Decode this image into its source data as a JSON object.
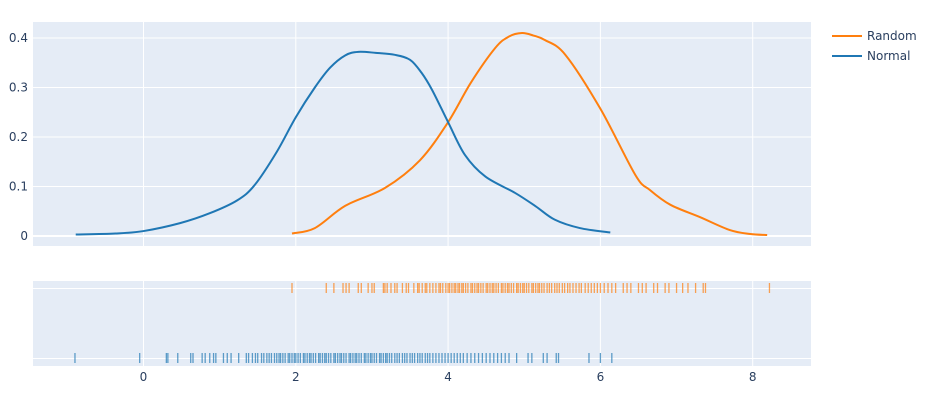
{
  "chart_data": {
    "type": "line",
    "subtype": "distplot (kde curves + rug)",
    "title": "",
    "xlabel": "",
    "ylabel": "",
    "xlim": [
      -1.45,
      8.75
    ],
    "ylim": [
      -0.02,
      0.43
    ],
    "grid": true,
    "legend_position": "top-right, outside plot",
    "x_ticks": [
      0,
      2,
      4,
      6,
      8
    ],
    "x_tick_labels": [
      "0",
      "2",
      "4",
      "6",
      "8"
    ],
    "y_ticks": [
      0,
      0.1,
      0.2,
      0.3,
      0.4
    ],
    "y_tick_labels": [
      "0",
      "0.1",
      "0.2",
      "0.3",
      "0.4"
    ],
    "series": [
      {
        "name": "Random",
        "color": "#ff7f0e",
        "x": [
          1.95,
          2.25,
          2.65,
          3.17,
          3.63,
          4.0,
          4.3,
          4.62,
          4.8,
          4.97,
          5.12,
          5.27,
          5.54,
          6.0,
          6.46,
          6.65,
          6.92,
          7.31,
          7.7,
          7.97,
          8.19
        ],
        "y": [
          0.005,
          0.016,
          0.061,
          0.097,
          0.153,
          0.23,
          0.31,
          0.38,
          0.403,
          0.41,
          0.405,
          0.396,
          0.366,
          0.257,
          0.123,
          0.093,
          0.063,
          0.038,
          0.012,
          0.004,
          0.002
        ],
        "rug": [
          1.95,
          2.4,
          2.5,
          2.62,
          2.66,
          2.7,
          2.82,
          2.86,
          2.95,
          3.0,
          3.03,
          3.15,
          3.17,
          3.2,
          3.25,
          3.3,
          3.33,
          3.4,
          3.45,
          3.48,
          3.55,
          3.6,
          3.62,
          3.66,
          3.7,
          3.72,
          3.76,
          3.8,
          3.84,
          3.88,
          3.9,
          3.93,
          3.97,
          4.0,
          4.02,
          4.05,
          4.08,
          4.1,
          4.13,
          4.15,
          4.18,
          4.2,
          4.23,
          4.26,
          4.3,
          4.32,
          4.35,
          4.38,
          4.4,
          4.43,
          4.46,
          4.5,
          4.52,
          4.55,
          4.58,
          4.6,
          4.63,
          4.66,
          4.7,
          4.72,
          4.75,
          4.78,
          4.8,
          4.83,
          4.86,
          4.9,
          4.92,
          4.95,
          4.98,
          5.0,
          5.03,
          5.06,
          5.1,
          5.12,
          5.15,
          5.18,
          5.2,
          5.23,
          5.26,
          5.3,
          5.33,
          5.36,
          5.4,
          5.43,
          5.46,
          5.5,
          5.53,
          5.57,
          5.6,
          5.64,
          5.68,
          5.72,
          5.75,
          5.8,
          5.84,
          5.88,
          5.92,
          5.96,
          6.0,
          6.05,
          6.1,
          6.15,
          6.2,
          6.3,
          6.35,
          6.4,
          6.5,
          6.55,
          6.6,
          6.7,
          6.75,
          6.85,
          6.9,
          7.0,
          7.08,
          7.15,
          7.25,
          7.35,
          7.38,
          8.22
        ]
      },
      {
        "name": "Normal",
        "color": "#1f77b4",
        "x": [
          -0.89,
          -0.37,
          0.0,
          0.48,
          0.87,
          1.23,
          1.46,
          1.75,
          2.0,
          2.25,
          2.45,
          2.65,
          2.82,
          3.05,
          3.3,
          3.5,
          3.65,
          3.79,
          4.0,
          4.22,
          4.49,
          4.88,
          5.15,
          5.4,
          5.73,
          6.13
        ],
        "y": [
          0.003,
          0.005,
          0.01,
          0.026,
          0.046,
          0.072,
          0.103,
          0.17,
          0.24,
          0.3,
          0.34,
          0.365,
          0.372,
          0.37,
          0.366,
          0.356,
          0.33,
          0.295,
          0.23,
          0.164,
          0.12,
          0.087,
          0.06,
          0.033,
          0.016,
          0.007
        ],
        "rug": [
          -0.9,
          -0.05,
          0.3,
          0.32,
          0.45,
          0.62,
          0.65,
          0.77,
          0.81,
          0.87,
          0.92,
          0.95,
          1.05,
          1.1,
          1.15,
          1.25,
          1.35,
          1.38,
          1.43,
          1.47,
          1.5,
          1.55,
          1.58,
          1.62,
          1.65,
          1.68,
          1.72,
          1.75,
          1.78,
          1.8,
          1.83,
          1.86,
          1.9,
          1.92,
          1.95,
          1.98,
          2.0,
          2.03,
          2.06,
          2.1,
          2.12,
          2.15,
          2.18,
          2.2,
          2.23,
          2.26,
          2.3,
          2.32,
          2.35,
          2.38,
          2.4,
          2.43,
          2.46,
          2.5,
          2.52,
          2.55,
          2.58,
          2.6,
          2.63,
          2.66,
          2.7,
          2.72,
          2.75,
          2.78,
          2.8,
          2.83,
          2.86,
          2.9,
          2.92,
          2.95,
          2.98,
          3.0,
          3.03,
          3.06,
          3.1,
          3.12,
          3.15,
          3.18,
          3.2,
          3.23,
          3.26,
          3.3,
          3.33,
          3.36,
          3.4,
          3.43,
          3.46,
          3.5,
          3.53,
          3.56,
          3.6,
          3.63,
          3.66,
          3.7,
          3.73,
          3.76,
          3.8,
          3.84,
          3.88,
          3.92,
          3.96,
          4.0,
          4.04,
          4.08,
          4.12,
          4.16,
          4.2,
          4.25,
          4.3,
          4.35,
          4.4,
          4.45,
          4.5,
          4.55,
          4.6,
          4.65,
          4.7,
          4.75,
          4.8,
          4.9,
          5.05,
          5.1,
          5.25,
          5.3,
          5.42,
          5.45,
          5.85,
          6.0,
          6.15
        ]
      }
    ]
  },
  "legend": {
    "items": [
      {
        "label": "Random",
        "color": "#ff7f0e"
      },
      {
        "label": "Normal",
        "color": "#1f77b4"
      }
    ]
  },
  "theme": {
    "plot_bg": "#e5ecf6",
    "grid_color": "#ffffff",
    "text_color": "#2a3f5f"
  }
}
